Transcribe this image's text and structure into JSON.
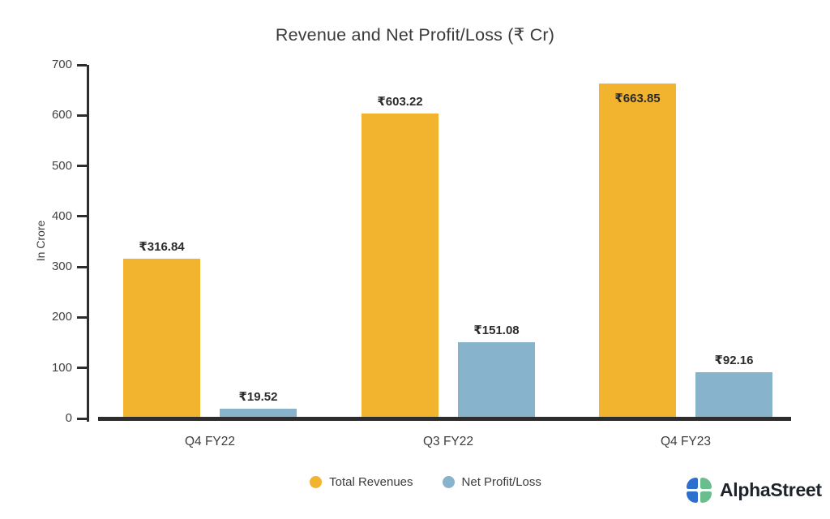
{
  "title": "Revenue and Net Profit/Loss (₹ Cr)",
  "chart_data": {
    "type": "bar",
    "title": "Revenue and Net Profit/Loss (₹ Cr)",
    "categories": [
      "Q4 FY22",
      "Q3 FY22",
      "Q4 FY23"
    ],
    "series": [
      {
        "name": "Total Revenues",
        "color": "#F2B32F",
        "values": [
          316.84,
          603.22,
          663.85
        ],
        "labels": [
          "₹316.84",
          "₹603.22",
          "₹663.85"
        ],
        "label_placement": [
          "above",
          "above",
          "inside"
        ]
      },
      {
        "name": "Net Profit/Loss",
        "color": "#87B4CC",
        "values": [
          19.52,
          151.08,
          92.16
        ],
        "labels": [
          "₹19.52",
          "₹151.08",
          "₹92.16"
        ],
        "label_placement": [
          "above",
          "above",
          "above"
        ]
      }
    ],
    "xlabel": "",
    "ylabel": "In Crore",
    "ylim": [
      0,
      700
    ],
    "yticks": [
      0,
      100,
      200,
      300,
      400,
      500,
      600,
      700
    ],
    "grid": false,
    "legend_position": "bottom",
    "colors": {
      "axis": "#2d2d2d",
      "tick_label": "#424242",
      "value_label": "#2b2b2b"
    }
  },
  "branding": {
    "name": "AlphaStreet",
    "logo_colors": {
      "blue": "#2D6FCF",
      "green": "#6ABE8E"
    }
  }
}
